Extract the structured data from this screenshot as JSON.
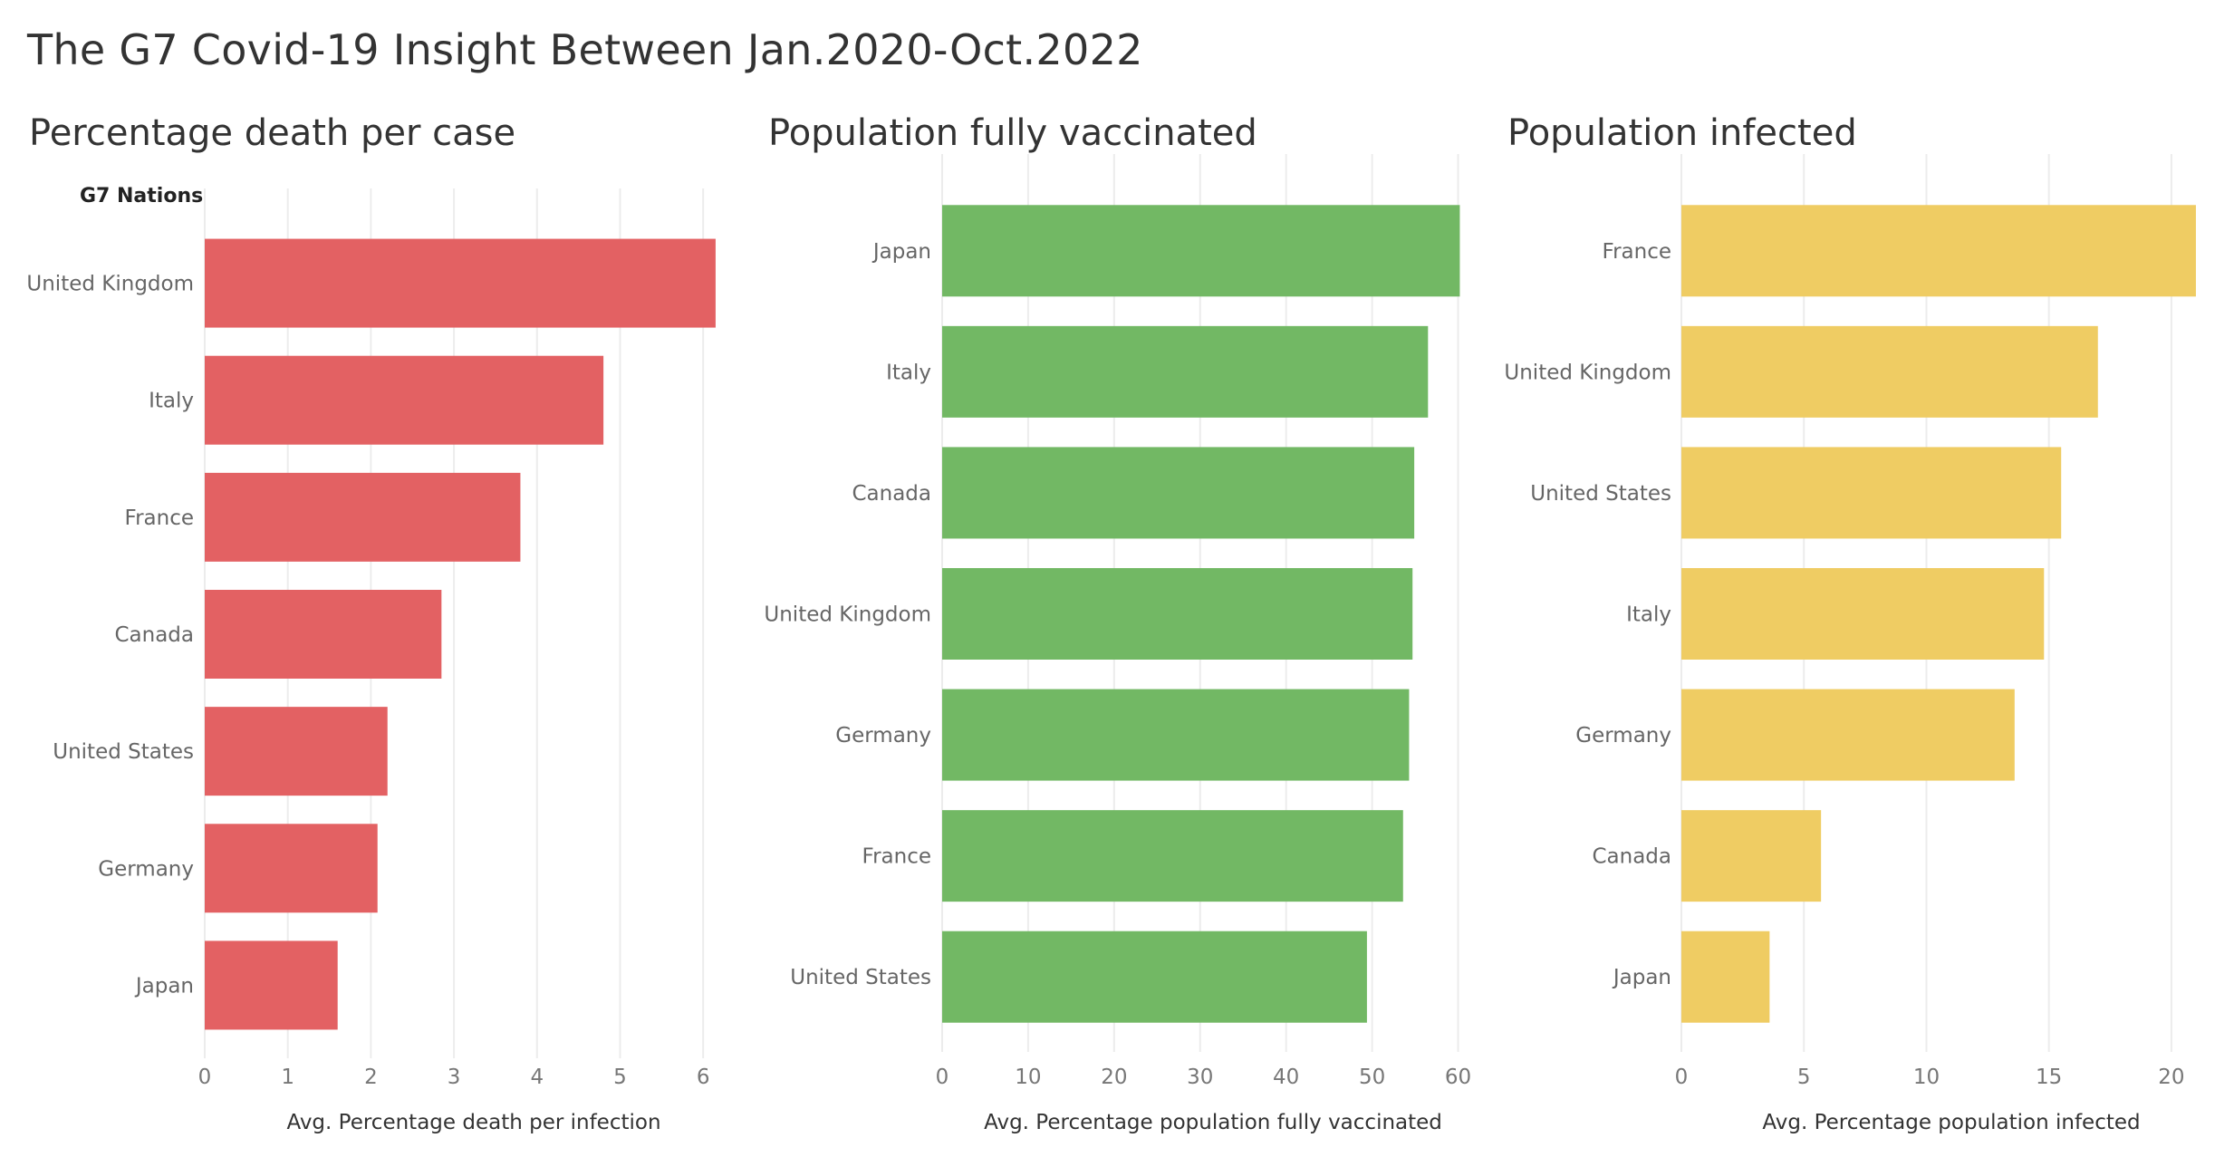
{
  "dashboard": {
    "title": "The G7 Covid-19 Insight Between Jan.2020-Oct.2022",
    "rows_header": "G7 Nations"
  },
  "colors": {
    "death": "#e36163",
    "vaccinated": "#72b864",
    "infected": "#efcc63",
    "gridline": "#ececec",
    "axis_text": "#777777"
  },
  "chart_data": [
    {
      "type": "bar",
      "orientation": "horizontal",
      "title": "Percentage death per case",
      "categories": [
        "United Kingdom",
        "Italy",
        "France",
        "Canada",
        "United States",
        "Germany",
        "Japan"
      ],
      "values": [
        6.15,
        4.8,
        3.8,
        2.85,
        2.2,
        2.08,
        1.6
      ],
      "xlabel": "Avg. Percentage death per infection",
      "ylabel": "G7 Nations",
      "xlim": [
        0,
        6.5
      ],
      "ticks": [
        0,
        1,
        2,
        3,
        4,
        5,
        6
      ],
      "grid": true,
      "color": "#e36163"
    },
    {
      "type": "bar",
      "orientation": "horizontal",
      "title": "Population fully vaccinated",
      "categories": [
        "Japan",
        "Italy",
        "Canada",
        "United Kingdom",
        "Germany",
        "France",
        "United States"
      ],
      "values": [
        60.2,
        56.5,
        54.9,
        54.7,
        54.3,
        53.6,
        49.4
      ],
      "xlabel": "Avg. Percentage population fully vaccinated",
      "xlim": [
        0,
        63
      ],
      "ticks": [
        0,
        10,
        20,
        30,
        40,
        50,
        60
      ],
      "grid": true,
      "color": "#72b864"
    },
    {
      "type": "bar",
      "orientation": "horizontal",
      "title": "Population infected",
      "categories": [
        "France",
        "United Kingdom",
        "United States",
        "Italy",
        "Germany",
        "Canada",
        "Japan"
      ],
      "values": [
        21.0,
        17.0,
        15.5,
        14.8,
        13.6,
        5.7,
        3.6
      ],
      "xlabel": "Avg. Percentage population infected",
      "xlim": [
        0,
        22
      ],
      "ticks": [
        0,
        5,
        10,
        15,
        20
      ],
      "grid": true,
      "color": "#efcc63"
    }
  ]
}
